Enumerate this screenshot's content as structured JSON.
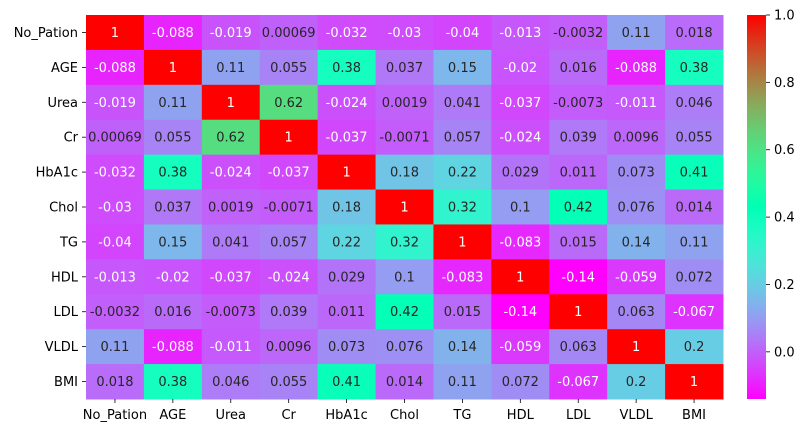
{
  "chart_data": {
    "type": "heatmap",
    "x_labels": [
      "No_Pation",
      "AGE",
      "Urea",
      "Cr",
      "HbA1c",
      "Chol",
      "TG",
      "HDL",
      "LDL",
      "VLDL",
      "BMI"
    ],
    "y_labels": [
      "No_Pation",
      "AGE",
      "Urea",
      "Cr",
      "HbA1c",
      "Chol",
      "TG",
      "HDL",
      "LDL",
      "VLDL",
      "BMI"
    ],
    "values": [
      [
        1,
        -0.088,
        -0.019,
        0.00069,
        -0.032,
        -0.03,
        -0.04,
        -0.013,
        -0.0032,
        0.11,
        0.018
      ],
      [
        -0.088,
        1,
        0.11,
        0.055,
        0.38,
        0.037,
        0.15,
        -0.02,
        0.016,
        -0.088,
        0.38
      ],
      [
        -0.019,
        0.11,
        1,
        0.62,
        -0.024,
        0.0019,
        0.041,
        -0.037,
        -0.0073,
        -0.011,
        0.046
      ],
      [
        0.00069,
        0.055,
        0.62,
        1,
        -0.037,
        -0.0071,
        0.057,
        -0.024,
        0.039,
        0.0096,
        0.055
      ],
      [
        -0.032,
        0.38,
        -0.024,
        -0.037,
        1,
        0.18,
        0.22,
        0.029,
        0.011,
        0.073,
        0.41
      ],
      [
        -0.03,
        0.037,
        0.0019,
        -0.0071,
        0.18,
        1,
        0.32,
        0.1,
        0.42,
        0.076,
        0.014
      ],
      [
        -0.04,
        0.15,
        0.041,
        0.057,
        0.22,
        0.32,
        1,
        -0.083,
        0.015,
        0.14,
        0.11
      ],
      [
        -0.013,
        -0.02,
        -0.037,
        -0.024,
        0.029,
        0.1,
        -0.083,
        1,
        -0.14,
        -0.059,
        0.072
      ],
      [
        -0.0032,
        0.016,
        -0.0073,
        0.039,
        0.011,
        0.42,
        0.015,
        -0.14,
        1,
        0.063,
        -0.067
      ],
      [
        0.11,
        -0.088,
        -0.011,
        0.0096,
        0.073,
        0.076,
        0.14,
        -0.059,
        0.063,
        1,
        0.2
      ],
      [
        0.018,
        0.38,
        0.046,
        0.055,
        0.41,
        0.014,
        0.11,
        0.072,
        -0.067,
        0.2,
        1
      ]
    ],
    "cell_text": [
      [
        "1",
        "-0.088",
        "-0.019",
        "0.00069",
        "-0.032",
        "-0.03",
        "-0.04",
        "-0.013",
        "-0.0032",
        "0.11",
        "0.018"
      ],
      [
        "-0.088",
        "1",
        "0.11",
        "0.055",
        "0.38",
        "0.037",
        "0.15",
        "-0.02",
        "0.016",
        "-0.088",
        "0.38"
      ],
      [
        "-0.019",
        "0.11",
        "1",
        "0.62",
        "-0.024",
        "0.0019",
        "0.041",
        "-0.037",
        "-0.0073",
        "-0.011",
        "0.046"
      ],
      [
        "0.00069",
        "0.055",
        "0.62",
        "1",
        "-0.037",
        "-0.0071",
        "0.057",
        "-0.024",
        "0.039",
        "0.0096",
        "0.055"
      ],
      [
        "-0.032",
        "0.38",
        "-0.024",
        "-0.037",
        "1",
        "0.18",
        "0.22",
        "0.029",
        "0.011",
        "0.073",
        "0.41"
      ],
      [
        "-0.03",
        "0.037",
        "0.0019",
        "-0.0071",
        "0.18",
        "1",
        "0.32",
        "0.1",
        "0.42",
        "0.076",
        "0.014"
      ],
      [
        "-0.04",
        "0.15",
        "0.041",
        "0.057",
        "0.22",
        "0.32",
        "1",
        "-0.083",
        "0.015",
        "0.14",
        "0.11"
      ],
      [
        "-0.013",
        "-0.02",
        "-0.037",
        "-0.024",
        "0.029",
        "0.1",
        "-0.083",
        "1",
        "-0.14",
        "-0.059",
        "0.072"
      ],
      [
        "-0.0032",
        "0.016",
        "-0.0073",
        "0.039",
        "0.011",
        "0.42",
        "0.015",
        "-0.14",
        "1",
        "0.063",
        "-0.067"
      ],
      [
        "0.11",
        "-0.088",
        "-0.011",
        "0.0096",
        "0.073",
        "0.076",
        "0.14",
        "-0.059",
        "0.063",
        "1",
        "0.2"
      ],
      [
        "0.018",
        "0.38",
        "0.046",
        "0.055",
        "0.41",
        "0.014",
        "0.11",
        "0.072",
        "-0.067",
        "0.2",
        "1"
      ]
    ],
    "colormap": "rainbow",
    "vmin": -0.14,
    "vmax": 1.0,
    "colorbar": {
      "ticks": [
        0.0,
        0.2,
        0.4,
        0.6,
        0.8,
        1.0
      ],
      "tick_labels": [
        "0.0",
        "0.2",
        "0.4",
        "0.6",
        "0.8",
        "1.0"
      ]
    },
    "title": "",
    "xlabel": "",
    "ylabel": "",
    "grid": false,
    "legend": "colorbar-right"
  }
}
